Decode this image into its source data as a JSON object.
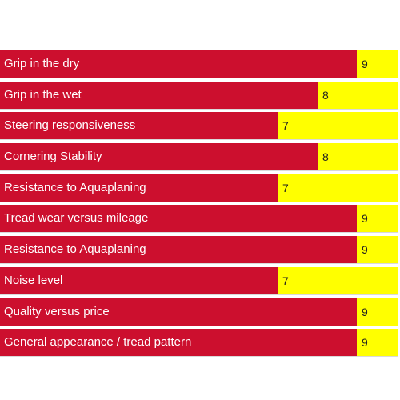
{
  "chart_data": {
    "type": "bar",
    "orientation": "horizontal",
    "xlim": [
      0,
      10
    ],
    "grid": false,
    "categories": [
      "Grip in the dry",
      "Grip in the wet",
      "Steering responsiveness",
      "Cornering Stability",
      "Resistance to Aquaplaning",
      "Tread wear versus mileage",
      "Resistance to Aquaplaning",
      "Noise level",
      "Quality versus price",
      "General appearance / tread pattern"
    ],
    "values": [
      9,
      8,
      7,
      8,
      7,
      9,
      9,
      7,
      9,
      9
    ],
    "value_labels": [
      "9",
      "8",
      "7",
      "8",
      "7",
      "9",
      "9",
      "7",
      "9",
      "9"
    ],
    "colors": {
      "bar": "#cc0f2e",
      "track": "#ffff00"
    }
  }
}
